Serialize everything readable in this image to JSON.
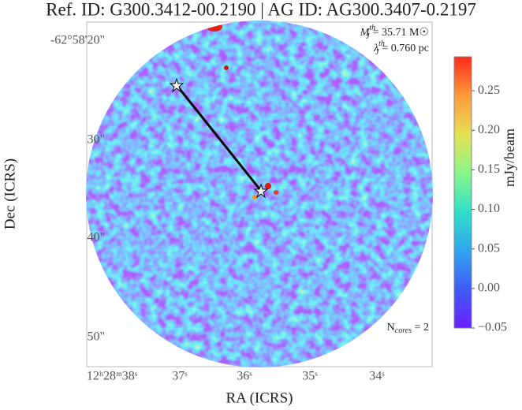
{
  "chart_data": {
    "type": "image",
    "title": "Ref. ID: G300.3412-00.2190 | AG ID: AG300.3407-0.2197",
    "xlabel": "RA (ICRS)",
    "ylabel": "Dec (ICRS)",
    "x_tick_labels": [
      "12ʰ28ᵐ38ˢ",
      "37ˢ",
      "36ˢ",
      "35ˢ",
      "34ˢ"
    ],
    "y_tick_labels": [
      "-62°58'20\"",
      "30\"",
      "40\"",
      "50\""
    ],
    "colorbar": {
      "label": "mJy/beam",
      "ylim": [
        -0.05,
        0.293
      ],
      "yticks": [
        {
          "value": -0.05,
          "label": "−0.05"
        },
        {
          "value": 0,
          "label": "0.00"
        },
        0.05,
        {
          "value": 0.1,
          "label": "0.10"
        },
        0.15,
        {
          "value": 0.2,
          "label": "0.20"
        },
        0.25
      ],
      "colormap": [
        "#6a1fff",
        "#3f5cf5",
        "#2fa6ee",
        "#2fe0c8",
        "#8cf58a",
        "#e6e055",
        "#ff9a3a",
        "#ff2a1a"
      ]
    },
    "annotations": {
      "mass": {
        "symbol": "M",
        "sub": "J",
        "sup": "th",
        "text": "= 35.71 M☉"
      },
      "length": {
        "symbol": "λ",
        "sub": "J",
        "sup": "th",
        "text": "= 0.760 pc"
      },
      "cores": {
        "symbol": "N",
        "sub": "cores",
        "text": " = 2"
      }
    }
  }
}
